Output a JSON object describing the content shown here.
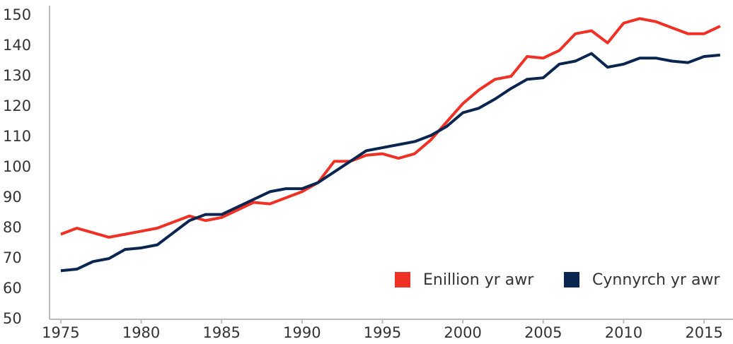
{
  "chart_data": {
    "type": "line",
    "x": [
      1975,
      1976,
      1977,
      1978,
      1979,
      1980,
      1981,
      1982,
      1983,
      1984,
      1985,
      1986,
      1987,
      1988,
      1989,
      1990,
      1991,
      1992,
      1993,
      1994,
      1995,
      1996,
      1997,
      1998,
      1999,
      2000,
      2001,
      2002,
      2003,
      2004,
      2005,
      2006,
      2007,
      2008,
      2009,
      2010,
      2011,
      2012,
      2013,
      2014,
      2015,
      2016
    ],
    "series": [
      {
        "name": "Enillion yr awr",
        "color": "#ee3124",
        "values": [
          78,
          80,
          78.5,
          77,
          78,
          79,
          80,
          82,
          84,
          82.5,
          83.5,
          86,
          88.5,
          88,
          90,
          92,
          95,
          102,
          102,
          104,
          104.5,
          103,
          104.5,
          109,
          115,
          121,
          125.5,
          129,
          130,
          136.5,
          136,
          138.5,
          144,
          145,
          141,
          147.5,
          149,
          148,
          146,
          144,
          144,
          146.5
        ]
      },
      {
        "name": "Cynnyrch yr awr",
        "color": "#0a2550",
        "values": [
          66,
          66.5,
          69,
          70,
          73,
          73.5,
          74.5,
          78.5,
          82.5,
          84.5,
          84.5,
          87,
          89.5,
          92,
          93,
          93,
          95,
          98.5,
          102,
          105.5,
          106.5,
          107.5,
          108.5,
          110.5,
          113.5,
          118,
          119.5,
          122.5,
          126,
          129,
          129.5,
          134,
          135,
          137.5,
          133,
          134,
          136,
          136,
          135,
          134.5,
          136.5,
          137
        ]
      }
    ],
    "xlim": [
      1974.3,
      2016.8
    ],
    "xticks": [
      1975,
      1980,
      1985,
      1990,
      1995,
      2000,
      2005,
      2010,
      2015
    ],
    "ylim": [
      50,
      150
    ],
    "yticks": [
      50,
      60,
      70,
      80,
      90,
      100,
      110,
      120,
      130,
      140,
      150
    ],
    "legend": "lower right"
  }
}
